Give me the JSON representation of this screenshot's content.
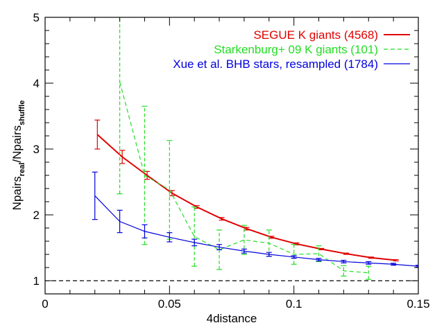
{
  "chart_data": {
    "type": "line",
    "xlabel": "4distance",
    "ylabel": [
      {
        "text": "Npairs"
      },
      {
        "text": "real",
        "sub": true
      },
      {
        "text": "/Npairs"
      },
      {
        "text": "shuffle",
        "sub": true
      }
    ],
    "xlim": [
      0,
      0.15
    ],
    "ylim": [
      0.8,
      5
    ],
    "xticks": [
      0,
      0.05,
      0.1,
      0.15
    ],
    "yticks": [
      1,
      2,
      3,
      4,
      5
    ],
    "xminorticks": [
      0.01,
      0.02,
      0.03,
      0.04,
      0.06,
      0.07,
      0.08,
      0.09,
      0.11,
      0.12,
      0.13,
      0.14
    ],
    "yminorticks": [
      1.2,
      1.4,
      1.6,
      1.8,
      2.2,
      2.4,
      2.6,
      2.8,
      3.2,
      3.4,
      3.6,
      3.8,
      4.2,
      4.4,
      4.6,
      4.8
    ],
    "hline": 1,
    "legend": "top-right",
    "series": [
      {
        "name": "SEGUE K giants (4568)",
        "color": "#e00000",
        "dash": "none",
        "width": 2,
        "x": [
          0.021,
          0.031,
          0.041,
          0.051,
          0.061,
          0.071,
          0.081,
          0.091,
          0.101,
          0.111,
          0.121,
          0.131,
          0.141
        ],
        "values": [
          3.22,
          2.88,
          2.6,
          2.33,
          2.12,
          1.94,
          1.79,
          1.66,
          1.56,
          1.48,
          1.41,
          1.35,
          1.31
        ],
        "errors": [
          0.22,
          0.1,
          0.06,
          0.04,
          0.02,
          0.02,
          0.02,
          0.015,
          0.015,
          0.01,
          0.01,
          0.01,
          0.01
        ]
      },
      {
        "name": "Starkenburg+ 09 K giants (101)",
        "color": "#22dd22",
        "dash": "6,4",
        "width": 1.2,
        "x": [
          0.03,
          0.04,
          0.05,
          0.06,
          0.07,
          0.08,
          0.09,
          0.1,
          0.11,
          0.12,
          0.13
        ],
        "values": [
          4.02,
          2.6,
          2.38,
          1.67,
          1.47,
          1.62,
          1.57,
          1.4,
          1.41,
          1.15,
          1.12
        ],
        "errors": [
          1.7,
          1.05,
          0.75,
          0.45,
          0.3,
          0.22,
          0.2,
          0.15,
          0.12,
          0.08,
          0.1
        ]
      },
      {
        "name": "Xue et al. BHB stars, resampled (1784)",
        "color": "#0000dd",
        "dash": "none",
        "width": 1.2,
        "x": [
          0.02,
          0.03,
          0.04,
          0.05,
          0.06,
          0.07,
          0.08,
          0.09,
          0.1,
          0.11,
          0.12,
          0.13,
          0.14,
          0.15
        ],
        "values": [
          2.29,
          1.9,
          1.75,
          1.66,
          1.58,
          1.51,
          1.45,
          1.4,
          1.36,
          1.32,
          1.29,
          1.27,
          1.25,
          1.22
        ],
        "errors": [
          0.36,
          0.17,
          0.1,
          0.07,
          0.05,
          0.04,
          0.03,
          0.03,
          0.02,
          0.02,
          0.02,
          0.02,
          0.015,
          0.015
        ]
      }
    ]
  }
}
